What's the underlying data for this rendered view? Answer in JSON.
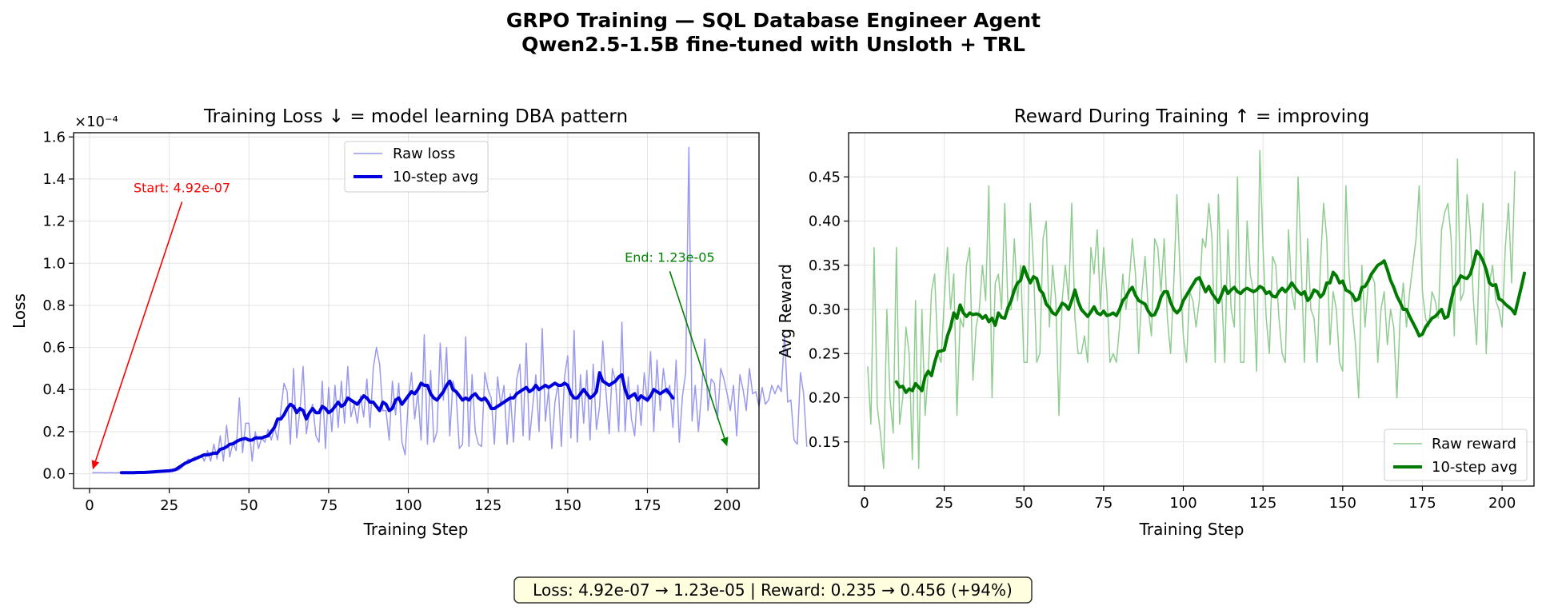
{
  "figure": {
    "title_line1": "GRPO Training — SQL Database Engineer Agent",
    "title_line2": "Qwen2.5-1.5B fine-tuned with Unsloth + TRL",
    "summary": "Loss: 4.92e-07 → 1.23e-05  |  Reward: 0.235 → 0.456 (+94%)"
  },
  "colors": {
    "raw_loss": "#9999ee",
    "avg_loss": "#0000dd",
    "raw_reward": "#8fcc8f",
    "avg_reward": "#007a00",
    "start_annot": "#ff0000",
    "end_annot": "#008000",
    "summary_bg": "#ffffe0"
  },
  "chart_data": [
    {
      "type": "line",
      "title": "Training Loss  ↓ = model learning DBA pattern",
      "xlabel": "Training Step",
      "ylabel": "Loss",
      "scale_label": "×10⁻⁴",
      "xlim": [
        -5,
        210
      ],
      "ylim": [
        -0.07,
        1.62
      ],
      "xticks": [
        0,
        25,
        50,
        75,
        100,
        125,
        150,
        175,
        200
      ],
      "yticks": [
        0.0,
        0.2,
        0.4,
        0.6,
        0.8,
        1.0,
        1.2,
        1.4,
        1.6
      ],
      "ytick_labels": [
        "0.0",
        "0.2",
        "0.4",
        "0.6",
        "0.8",
        "1.0",
        "1.2",
        "1.4",
        "1.6"
      ],
      "grid": true,
      "legend_position": "upper-center",
      "annotations": [
        {
          "text": "Start: 4.92e-07",
          "x_text": 29,
          "y_text": 1.33,
          "x_point": 1,
          "y_point": 0.02
        },
        {
          "text": "End: 1.23e-05",
          "x_text": 182,
          "y_text": 1.0,
          "x_point": 200,
          "y_point": 0.13
        }
      ],
      "series": [
        {
          "name": "Raw loss",
          "x_start": 1,
          "y": [
            0.005,
            0.005,
            0.005,
            0.005,
            0.004,
            0.005,
            0.005,
            0.004,
            0.005,
            0.005,
            0.004,
            0.005,
            0.005,
            0.005,
            0.006,
            0.005,
            0.006,
            0.007,
            0.008,
            0.008,
            0.009,
            0.01,
            0.012,
            0.013,
            0.012,
            0.014,
            0.016,
            0.018,
            0.03,
            0.05,
            0.07,
            0.06,
            0.08,
            0.07,
            0.09,
            0.06,
            0.11,
            0.06,
            0.14,
            0.07,
            0.18,
            0.06,
            0.23,
            0.08,
            0.15,
            0.11,
            0.36,
            0.1,
            0.24,
            0.24,
            0.06,
            0.2,
            0.12,
            0.17,
            0.15,
            0.21,
            0.16,
            0.22,
            0.16,
            0.3,
            0.43,
            0.39,
            0.14,
            0.5,
            0.17,
            0.3,
            0.51,
            0.19,
            0.29,
            0.33,
            0.18,
            0.15,
            0.44,
            0.12,
            0.41,
            0.2,
            0.42,
            0.22,
            0.44,
            0.24,
            0.51,
            0.27,
            0.33,
            0.24,
            0.37,
            0.27,
            0.45,
            0.22,
            0.5,
            0.6,
            0.52,
            0.3,
            0.3,
            0.16,
            0.44,
            0.28,
            0.43,
            0.15,
            0.09,
            0.35,
            0.48,
            0.26,
            0.39,
            0.16,
            0.66,
            0.14,
            0.49,
            0.15,
            0.2,
            0.62,
            0.35,
            0.6,
            0.18,
            0.44,
            0.38,
            0.12,
            0.14,
            0.65,
            0.13,
            0.47,
            0.2,
            0.14,
            0.13,
            0.48,
            0.4,
            0.36,
            0.14,
            0.46,
            0.32,
            0.42,
            0.14,
            0.38,
            0.15,
            0.45,
            0.52,
            0.18,
            0.62,
            0.16,
            0.32,
            0.47,
            0.2,
            0.69,
            0.25,
            0.4,
            0.12,
            0.34,
            0.43,
            0.13,
            0.46,
            0.56,
            0.17,
            0.68,
            0.15,
            0.47,
            0.24,
            0.49,
            0.16,
            0.52,
            0.21,
            0.32,
            0.63,
            0.39,
            0.19,
            0.5,
            0.44,
            0.2,
            0.72,
            0.2,
            0.46,
            0.26,
            0.18,
            0.42,
            0.23,
            0.48,
            0.34,
            0.58,
            0.2,
            0.54,
            0.3,
            0.5,
            0.38,
            0.42,
            0.22,
            0.54,
            0.15,
            0.37,
            0.48,
            1.55,
            0.25,
            0.42,
            0.2,
            0.39,
            0.64,
            0.3,
            0.45,
            0.43,
            0.26,
            0.5,
            0.45,
            0.38,
            0.3,
            0.42,
            0.18,
            0.47,
            0.4,
            0.3,
            0.5,
            0.38,
            0.39,
            0.32,
            0.41,
            0.33,
            0.35,
            0.42,
            0.38,
            0.42,
            0.39,
            0.66,
            0.34,
            0.35,
            0.16,
            0.14,
            0.48,
            0.38,
            0.13
          ]
        },
        {
          "name": "10-step avg",
          "x_start": 10,
          "y": [
            0.005,
            0.005,
            0.005,
            0.005,
            0.005,
            0.006,
            0.006,
            0.006,
            0.007,
            0.008,
            0.009,
            0.01,
            0.011,
            0.012,
            0.013,
            0.014,
            0.016,
            0.02,
            0.03,
            0.04,
            0.05,
            0.056,
            0.064,
            0.07,
            0.077,
            0.083,
            0.09,
            0.09,
            0.093,
            0.098,
            0.097,
            0.116,
            0.12,
            0.128,
            0.14,
            0.142,
            0.152,
            0.16,
            0.165,
            0.168,
            0.16,
            0.16,
            0.17,
            0.17,
            0.17,
            0.176,
            0.18,
            0.2,
            0.22,
            0.26,
            0.26,
            0.28,
            0.31,
            0.33,
            0.32,
            0.29,
            0.31,
            0.3,
            0.26,
            0.29,
            0.31,
            0.29,
            0.29,
            0.32,
            0.31,
            0.29,
            0.3,
            0.32,
            0.34,
            0.32,
            0.33,
            0.36,
            0.35,
            0.34,
            0.33,
            0.35,
            0.37,
            0.36,
            0.34,
            0.34,
            0.32,
            0.3,
            0.34,
            0.33,
            0.3,
            0.31,
            0.35,
            0.36,
            0.33,
            0.35,
            0.37,
            0.39,
            0.38,
            0.4,
            0.43,
            0.42,
            0.42,
            0.38,
            0.36,
            0.35,
            0.37,
            0.39,
            0.42,
            0.44,
            0.4,
            0.39,
            0.37,
            0.35,
            0.36,
            0.35,
            0.37,
            0.38,
            0.36,
            0.35,
            0.36,
            0.34,
            0.31,
            0.31,
            0.32,
            0.33,
            0.34,
            0.35,
            0.36,
            0.36,
            0.38,
            0.39,
            0.4,
            0.41,
            0.39,
            0.4,
            0.42,
            0.4,
            0.41,
            0.42,
            0.41,
            0.42,
            0.43,
            0.42,
            0.42,
            0.43,
            0.42,
            0.38,
            0.36,
            0.36,
            0.38,
            0.4,
            0.38,
            0.36,
            0.37,
            0.39,
            0.48,
            0.44,
            0.43,
            0.42,
            0.43,
            0.44,
            0.46,
            0.47,
            0.4,
            0.36,
            0.37,
            0.38,
            0.35,
            0.37,
            0.36,
            0.35,
            0.37,
            0.4,
            0.39,
            0.38,
            0.39,
            0.4,
            0.38,
            0.36
          ]
        }
      ]
    },
    {
      "type": "line",
      "title": "Reward During Training  ↑ = improving",
      "xlabel": "Training Step",
      "ylabel": "Avg Reward",
      "xlim": [
        -5,
        210
      ],
      "ylim": [
        0.1,
        0.5
      ],
      "xticks": [
        0,
        25,
        50,
        75,
        100,
        125,
        150,
        175,
        200
      ],
      "yticks": [
        0.15,
        0.2,
        0.25,
        0.3,
        0.35,
        0.4,
        0.45
      ],
      "ytick_labels": [
        "0.15",
        "0.20",
        "0.25",
        "0.30",
        "0.35",
        "0.40",
        "0.45"
      ],
      "grid": true,
      "legend_position": "lower-right",
      "series": [
        {
          "name": "Raw reward",
          "x_start": 1,
          "y": [
            0.235,
            0.17,
            0.37,
            0.19,
            0.16,
            0.12,
            0.3,
            0.2,
            0.16,
            0.37,
            0.17,
            0.2,
            0.28,
            0.25,
            0.13,
            0.31,
            0.12,
            0.3,
            0.18,
            0.23,
            0.32,
            0.34,
            0.25,
            0.24,
            0.31,
            0.37,
            0.3,
            0.34,
            0.18,
            0.29,
            0.28,
            0.35,
            0.37,
            0.22,
            0.28,
            0.3,
            0.35,
            0.31,
            0.44,
            0.2,
            0.33,
            0.34,
            0.3,
            0.42,
            0.3,
            0.3,
            0.38,
            0.31,
            0.35,
            0.24,
            0.24,
            0.42,
            0.35,
            0.24,
            0.25,
            0.38,
            0.4,
            0.28,
            0.35,
            0.31,
            0.18,
            0.31,
            0.35,
            0.31,
            0.42,
            0.29,
            0.25,
            0.25,
            0.27,
            0.24,
            0.37,
            0.34,
            0.39,
            0.3,
            0.37,
            0.32,
            0.24,
            0.25,
            0.24,
            0.28,
            0.34,
            0.3,
            0.33,
            0.38,
            0.34,
            0.25,
            0.32,
            0.36,
            0.3,
            0.27,
            0.38,
            0.37,
            0.32,
            0.38,
            0.29,
            0.25,
            0.33,
            0.43,
            0.34,
            0.27,
            0.24,
            0.32,
            0.31,
            0.28,
            0.31,
            0.38,
            0.37,
            0.42,
            0.38,
            0.24,
            0.43,
            0.32,
            0.24,
            0.39,
            0.3,
            0.28,
            0.45,
            0.24,
            0.24,
            0.4,
            0.34,
            0.32,
            0.23,
            0.48,
            0.37,
            0.29,
            0.25,
            0.36,
            0.35,
            0.29,
            0.25,
            0.24,
            0.39,
            0.32,
            0.3,
            0.45,
            0.35,
            0.24,
            0.38,
            0.3,
            0.29,
            0.24,
            0.35,
            0.42,
            0.38,
            0.26,
            0.32,
            0.3,
            0.24,
            0.23,
            0.44,
            0.34,
            0.3,
            0.26,
            0.2,
            0.35,
            0.28,
            0.33,
            0.34,
            0.33,
            0.24,
            0.3,
            0.32,
            0.26,
            0.3,
            0.28,
            0.2,
            0.29,
            0.33,
            0.28,
            0.32,
            0.35,
            0.38,
            0.44,
            0.32,
            0.29,
            0.28,
            0.32,
            0.31,
            0.29,
            0.39,
            0.41,
            0.42,
            0.38,
            0.27,
            0.47,
            0.31,
            0.32,
            0.43,
            0.39,
            0.31,
            0.26,
            0.37,
            0.42,
            0.25,
            0.33,
            0.35,
            0.31,
            0.3,
            0.28,
            0.37,
            0.42,
            0.33,
            0.456
          ]
        },
        {
          "name": "10-step avg",
          "x_start": 10,
          "y": [
            0.218,
            0.212,
            0.213,
            0.206,
            0.21,
            0.208,
            0.216,
            0.212,
            0.208,
            0.224,
            0.23,
            0.225,
            0.24,
            0.252,
            0.253,
            0.254,
            0.27,
            0.28,
            0.296,
            0.29,
            0.305,
            0.296,
            0.292,
            0.296,
            0.294,
            0.295,
            0.294,
            0.29,
            0.293,
            0.286,
            0.29,
            0.282,
            0.296,
            0.291,
            0.29,
            0.302,
            0.31,
            0.322,
            0.33,
            0.333,
            0.348,
            0.338,
            0.33,
            0.337,
            0.335,
            0.322,
            0.318,
            0.306,
            0.302,
            0.296,
            0.294,
            0.3,
            0.307,
            0.305,
            0.3,
            0.31,
            0.322,
            0.309,
            0.3,
            0.296,
            0.292,
            0.297,
            0.303,
            0.296,
            0.294,
            0.298,
            0.293,
            0.294,
            0.296,
            0.293,
            0.3,
            0.31,
            0.314,
            0.321,
            0.325,
            0.316,
            0.31,
            0.308,
            0.306,
            0.298,
            0.293,
            0.294,
            0.302,
            0.314,
            0.32,
            0.32,
            0.308,
            0.3,
            0.296,
            0.3,
            0.31,
            0.316,
            0.322,
            0.328,
            0.334,
            0.336,
            0.328,
            0.32,
            0.326,
            0.318,
            0.313,
            0.308,
            0.317,
            0.326,
            0.318,
            0.322,
            0.325,
            0.32,
            0.318,
            0.322,
            0.324,
            0.322,
            0.32,
            0.322,
            0.326,
            0.324,
            0.318,
            0.32,
            0.315,
            0.314,
            0.32,
            0.324,
            0.32,
            0.324,
            0.33,
            0.325,
            0.32,
            0.317,
            0.32,
            0.31,
            0.314,
            0.322,
            0.32,
            0.314,
            0.318,
            0.33,
            0.33,
            0.342,
            0.338,
            0.33,
            0.332,
            0.322,
            0.32,
            0.317,
            0.31,
            0.312,
            0.325,
            0.326,
            0.332,
            0.34,
            0.345,
            0.35,
            0.352,
            0.355,
            0.345,
            0.333,
            0.325,
            0.315,
            0.308,
            0.3,
            0.3,
            0.292,
            0.285,
            0.278,
            0.27,
            0.272,
            0.28,
            0.285,
            0.29,
            0.292,
            0.296,
            0.3,
            0.29,
            0.292,
            0.31,
            0.325,
            0.33,
            0.338,
            0.336,
            0.335,
            0.34,
            0.352,
            0.366,
            0.362,
            0.355,
            0.345,
            0.33,
            0.327,
            0.328,
            0.312,
            0.31,
            0.306,
            0.303,
            0.3,
            0.295,
            0.31,
            0.325,
            0.341
          ]
        }
      ]
    }
  ]
}
